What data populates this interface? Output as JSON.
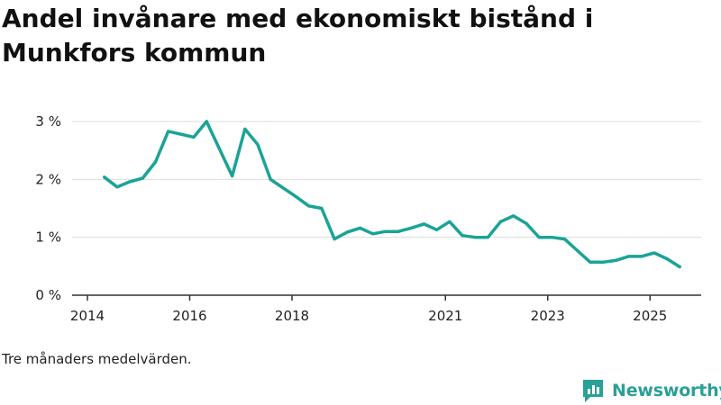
{
  "chart_data": {
    "type": "line",
    "title": "Andel invånare med ekonomiskt bistånd i Munkfors kommun",
    "xlabel": "",
    "ylabel": "",
    "note": "Tre månaders medelvärden.",
    "line_color": "#1aa397",
    "xlim": [
      2014.0,
      2026.0
    ],
    "ylim": [
      0,
      3
    ],
    "x_ticks": [
      {
        "value": 2014.0,
        "label": "2014"
      },
      {
        "value": 2016.0,
        "label": "2016"
      },
      {
        "value": 2018.0,
        "label": "2018"
      },
      {
        "value": 2021.0,
        "label": "2021"
      },
      {
        "value": 2023.0,
        "label": "2023"
      },
      {
        "value": 2025.0,
        "label": "2025"
      }
    ],
    "y_ticks": [
      {
        "value": 0,
        "label": "0 %"
      },
      {
        "value": 1,
        "label": "1 %"
      },
      {
        "value": 2,
        "label": "2 %"
      },
      {
        "value": 3,
        "label": "3 %"
      }
    ],
    "series": [
      {
        "name": "Andel invånare med ekonomiskt bistånd",
        "x": [
          2014.33,
          2014.58,
          2014.83,
          2015.08,
          2015.33,
          2015.58,
          2015.83,
          2016.08,
          2016.33,
          2016.58,
          2016.83,
          2017.08,
          2017.33,
          2017.58,
          2017.83,
          2018.08,
          2018.33,
          2018.58,
          2018.83,
          2019.08,
          2019.33,
          2019.58,
          2019.83,
          2020.08,
          2020.33,
          2020.58,
          2020.83,
          2021.08,
          2021.33,
          2021.58,
          2021.83,
          2022.08,
          2022.33,
          2022.58,
          2022.83,
          2023.08,
          2023.33,
          2023.58,
          2023.83,
          2024.08,
          2024.33,
          2024.58,
          2024.83,
          2025.08,
          2025.33,
          2025.58
        ],
        "values": [
          2.04,
          1.87,
          1.96,
          2.02,
          2.3,
          2.83,
          2.78,
          2.73,
          3.0,
          2.53,
          2.06,
          2.87,
          2.6,
          2.0,
          1.85,
          1.7,
          1.54,
          1.5,
          0.97,
          1.09,
          1.16,
          1.06,
          1.1,
          1.1,
          1.16,
          1.23,
          1.13,
          1.27,
          1.03,
          1.0,
          1.0,
          1.27,
          1.37,
          1.24,
          1.0,
          1.0,
          0.97,
          0.77,
          0.57,
          0.57,
          0.6,
          0.67,
          0.67,
          0.73,
          0.63,
          0.49
        ]
      }
    ]
  },
  "brand": {
    "name": "Newsworthy",
    "icon": "newsworthy-logo-icon",
    "color": "#2aa096"
  }
}
